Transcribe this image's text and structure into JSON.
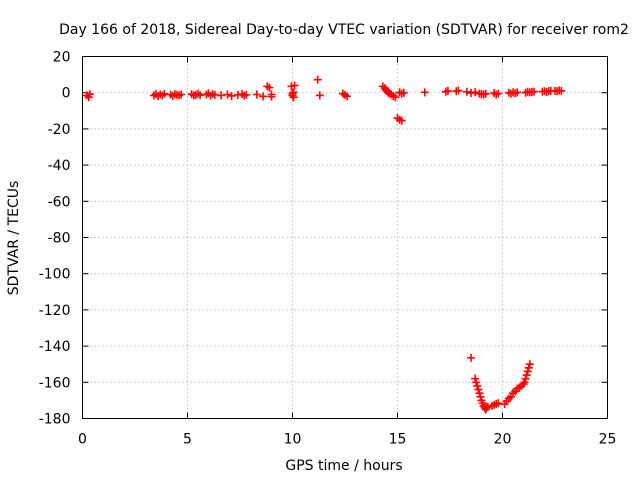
{
  "chart_data": {
    "type": "scatter",
    "title": "Day 166 of 2018, Sidereal Day-to-day VTEC variation (SDTVAR) for receiver rom2",
    "xlabel": "GPS time / hours",
    "ylabel": "SDTVAR / TECUs",
    "xlim": [
      0,
      25
    ],
    "ylim": [
      -180,
      20
    ],
    "xticks": [
      0,
      5,
      10,
      15,
      20,
      25
    ],
    "yticks": [
      20,
      0,
      -20,
      -40,
      -60,
      -80,
      -100,
      -120,
      -140,
      -160,
      -180
    ],
    "grid": true,
    "marker": "plus",
    "color": "#ff0000",
    "series": [
      {
        "name": "SDTVAR",
        "points": [
          [
            0.2,
            -1.5
          ],
          [
            0.3,
            -2.5
          ],
          [
            0.35,
            -0.8
          ],
          [
            3.4,
            -1.5
          ],
          [
            3.5,
            -0.8
          ],
          [
            3.6,
            -1.8
          ],
          [
            3.7,
            -1.0
          ],
          [
            3.8,
            -1.5
          ],
          [
            3.9,
            -0.6
          ],
          [
            4.2,
            -1.0
          ],
          [
            4.3,
            -1.8
          ],
          [
            4.4,
            -0.8
          ],
          [
            4.5,
            -1.2
          ],
          [
            4.6,
            -1.5
          ],
          [
            4.7,
            -1.0
          ],
          [
            5.2,
            -0.8
          ],
          [
            5.3,
            -1.5
          ],
          [
            5.4,
            -1.2
          ],
          [
            5.5,
            -0.6
          ],
          [
            5.6,
            -1.4
          ],
          [
            5.9,
            -1.0
          ],
          [
            6.0,
            -0.4
          ],
          [
            6.1,
            -1.6
          ],
          [
            6.2,
            -0.8
          ],
          [
            6.3,
            -1.2
          ],
          [
            6.6,
            -1.5
          ],
          [
            6.9,
            -1.0
          ],
          [
            7.1,
            -1.8
          ],
          [
            7.4,
            -1.2
          ],
          [
            7.6,
            -0.8
          ],
          [
            7.7,
            -1.6
          ],
          [
            7.8,
            -1.2
          ],
          [
            8.3,
            -1.0
          ],
          [
            8.6,
            -2.0
          ],
          [
            8.8,
            3.5
          ],
          [
            8.9,
            2.8
          ],
          [
            9.0,
            -1.0
          ],
          [
            9.0,
            -2.2
          ],
          [
            9.95,
            3.5
          ],
          [
            10.0,
            -0.5
          ],
          [
            10.0,
            -1.5
          ],
          [
            10.05,
            0.2
          ],
          [
            10.05,
            -2.5
          ],
          [
            10.1,
            4.0
          ],
          [
            11.2,
            7.2
          ],
          [
            11.3,
            -1.5
          ],
          [
            12.4,
            -0.5
          ],
          [
            12.5,
            -1.2
          ],
          [
            12.6,
            -2.0
          ],
          [
            14.3,
            3.5
          ],
          [
            14.4,
            2.5
          ],
          [
            14.45,
            1.5
          ],
          [
            14.5,
            1.0
          ],
          [
            14.55,
            0.2
          ],
          [
            14.6,
            -0.5
          ],
          [
            14.7,
            -1.0
          ],
          [
            14.8,
            -1.8
          ],
          [
            14.9,
            -2.5
          ],
          [
            15.0,
            -14.0
          ],
          [
            15.1,
            -15.0
          ],
          [
            15.2,
            -15.5
          ],
          [
            15.1,
            0.2
          ],
          [
            15.2,
            -0.5
          ],
          [
            15.3,
            0.0
          ],
          [
            16.3,
            0.2
          ],
          [
            17.3,
            0.5
          ],
          [
            17.4,
            1.0
          ],
          [
            17.8,
            0.8
          ],
          [
            17.9,
            1.2
          ],
          [
            18.3,
            0.5
          ],
          [
            18.5,
            -0.2
          ],
          [
            18.7,
            0.3
          ],
          [
            18.9,
            -0.5
          ],
          [
            19.0,
            -0.8
          ],
          [
            19.1,
            -1.0
          ],
          [
            19.2,
            -0.6
          ],
          [
            19.6,
            -0.2
          ],
          [
            19.7,
            -1.0
          ],
          [
            19.8,
            -0.5
          ],
          [
            20.3,
            0.0
          ],
          [
            20.4,
            -0.5
          ],
          [
            20.5,
            0.2
          ],
          [
            20.6,
            -0.3
          ],
          [
            20.7,
            0.2
          ],
          [
            21.1,
            0.0
          ],
          [
            21.2,
            0.5
          ],
          [
            21.3,
            0.2
          ],
          [
            21.4,
            0.4
          ],
          [
            21.5,
            0.6
          ],
          [
            21.9,
            0.6
          ],
          [
            22.0,
            0.8
          ],
          [
            22.1,
            0.4
          ],
          [
            22.2,
            0.9
          ],
          [
            22.3,
            1.0
          ],
          [
            22.5,
            1.0
          ],
          [
            22.6,
            0.8
          ],
          [
            22.7,
            1.2
          ],
          [
            22.8,
            1.0
          ],
          [
            18.5,
            -146.5
          ],
          [
            18.7,
            -158
          ],
          [
            18.75,
            -160
          ],
          [
            18.8,
            -162
          ],
          [
            18.85,
            -164
          ],
          [
            18.9,
            -166
          ],
          [
            18.95,
            -168
          ],
          [
            19.0,
            -170
          ],
          [
            19.05,
            -171.5
          ],
          [
            19.1,
            -173
          ],
          [
            19.15,
            -174
          ],
          [
            19.2,
            -175
          ],
          [
            19.25,
            -174
          ],
          [
            19.3,
            -173.5
          ],
          [
            19.5,
            -173
          ],
          [
            19.6,
            -172.5
          ],
          [
            19.7,
            -172
          ],
          [
            19.8,
            -171.5
          ],
          [
            20.1,
            -172
          ],
          [
            20.2,
            -170.5
          ],
          [
            20.3,
            -169
          ],
          [
            20.4,
            -168
          ],
          [
            20.5,
            -166
          ],
          [
            20.6,
            -165
          ],
          [
            20.7,
            -163.5
          ],
          [
            20.8,
            -163
          ],
          [
            20.9,
            -162
          ],
          [
            21.0,
            -161
          ],
          [
            21.05,
            -160
          ],
          [
            21.1,
            -158
          ],
          [
            21.15,
            -156
          ],
          [
            21.2,
            -154
          ],
          [
            21.25,
            -152
          ],
          [
            21.3,
            -150
          ]
        ]
      }
    ]
  }
}
